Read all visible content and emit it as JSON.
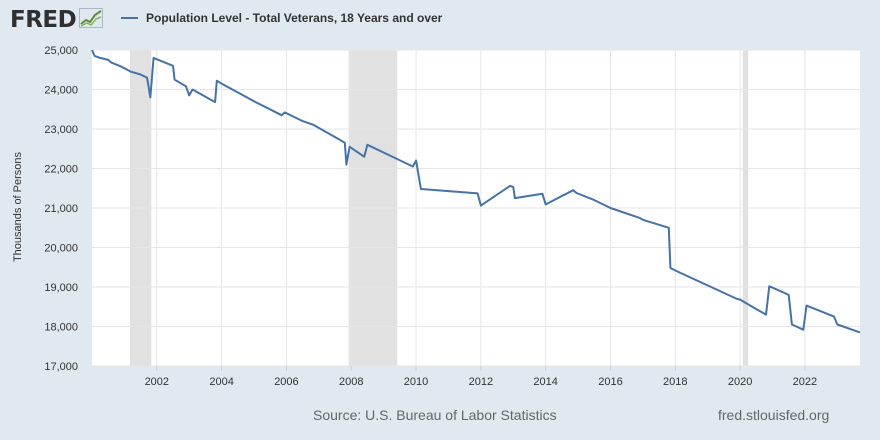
{
  "header": {
    "logo_text": "FRED",
    "logo_icon": "fred-graph-icon",
    "series_label": "Population Level - Total Veterans, 18 Years and over",
    "series_color": "#4572a7"
  },
  "footer": {
    "source": "Source: U.S. Bureau of Labor Statistics",
    "site": "fred.stlouisfed.org"
  },
  "chart_data": {
    "type": "line",
    "title": "",
    "xlabel": "",
    "ylabel": "Thousands of Persons",
    "xlim": [
      2000.0,
      2023.7
    ],
    "ylim": [
      17000,
      25000
    ],
    "xticks": [
      2002,
      2004,
      2006,
      2008,
      2010,
      2012,
      2014,
      2016,
      2018,
      2020,
      2022
    ],
    "yticks": [
      17000,
      18000,
      19000,
      20000,
      21000,
      22000,
      23000,
      24000,
      25000
    ],
    "grid": true,
    "legend": "top-left",
    "recessions": [
      [
        2001.17,
        2001.83
      ],
      [
        2007.92,
        2009.42
      ],
      [
        2020.08,
        2020.25
      ]
    ],
    "series": [
      {
        "name": "Population Level - Total Veterans, 18 Years and over",
        "color": "#4572a7",
        "x": [
          2000.0,
          2000.08,
          2000.25,
          2000.5,
          2000.6,
          2000.9,
          2001.2,
          2001.5,
          2001.7,
          2001.8,
          2001.9,
          2002.5,
          2002.55,
          2002.9,
          2003.0,
          2003.1,
          2003.8,
          2003.85,
          2004.0,
          2005.0,
          2005.85,
          2005.95,
          2006.5,
          2006.85,
          2006.95,
          2007.7,
          2007.8,
          2007.85,
          2007.95,
          2008.4,
          2008.5,
          2009.9,
          2010.0,
          2010.15,
          2011.9,
          2012.0,
          2012.9,
          2013.0,
          2013.05,
          2013.9,
          2014.0,
          2014.85,
          2014.95,
          2015.5,
          2016.0,
          2016.9,
          2017.0,
          2017.8,
          2017.85,
          2018.0,
          2018.1,
          2019.9,
          2020.0,
          2020.5,
          2020.8,
          2020.9,
          2021.5,
          2021.6,
          2021.95,
          2022.05,
          2022.9,
          2023.0,
          2023.7
        ],
        "values": [
          25000,
          24850,
          24800,
          24750,
          24680,
          24580,
          24450,
          24380,
          24300,
          23800,
          24800,
          24600,
          24250,
          24080,
          23850,
          24000,
          23680,
          24220,
          24150,
          23700,
          23350,
          23420,
          23200,
          23100,
          23050,
          22700,
          22650,
          22100,
          22550,
          22300,
          22600,
          22050,
          22200,
          21480,
          21370,
          21060,
          21560,
          21530,
          21250,
          21360,
          21090,
          21450,
          21380,
          21200,
          21000,
          20750,
          20700,
          20500,
          19480,
          19420,
          19380,
          18700,
          18680,
          18440,
          18300,
          19020,
          18800,
          18050,
          17920,
          18530,
          18250,
          18050,
          17850
        ]
      }
    ]
  }
}
